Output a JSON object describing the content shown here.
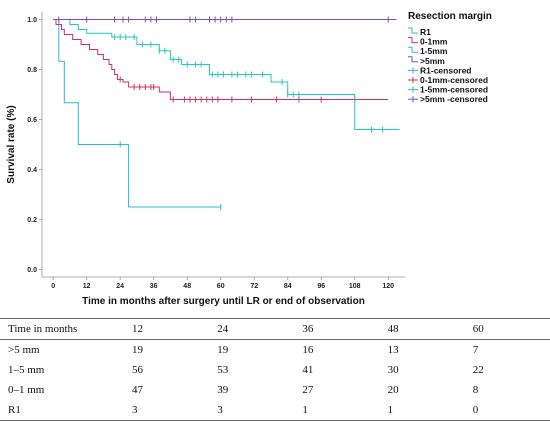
{
  "chart_data": {
    "type": "line",
    "subtype": "kaplan-meier",
    "title": "",
    "xlabel": "Time in months after surgery until LR or end of observation",
    "ylabel": "Survival rate (%)",
    "xlim": [
      -4,
      126
    ],
    "ylim": [
      -0.03,
      1.03
    ],
    "x_ticks": [
      0,
      12,
      24,
      36,
      48,
      60,
      72,
      84,
      96,
      108,
      120
    ],
    "x_tick_labels": [
      "0",
      "12",
      "24",
      "36",
      "48",
      "60",
      "72",
      "84",
      "96",
      "108",
      "120"
    ],
    "y_ticks": [
      0,
      0.2,
      0.4,
      0.6,
      0.8,
      1.0
    ],
    "y_tick_labels": [
      "0.0",
      "0.2",
      "0.4",
      "0.6",
      "0.8",
      "1.0"
    ],
    "grid": false,
    "legend_title": "Resection margin",
    "legend_position": "top-right",
    "series": [
      {
        "name": "R1",
        "censored_name": "R1-censored",
        "color": "#2fb8d0",
        "steps": [
          [
            0,
            1.0
          ],
          [
            2,
            0.833
          ],
          [
            4,
            0.667
          ],
          [
            9,
            0.5
          ],
          [
            27,
            0.25
          ]
        ],
        "end_x": 60,
        "censored_x": [
          24,
          60
        ]
      },
      {
        "name": "0-1mm",
        "censored_name": "0-1mm-censored",
        "color": "#d2325f",
        "steps": [
          [
            0,
            1.0
          ],
          [
            1,
            0.98
          ],
          [
            3,
            0.96
          ],
          [
            4,
            0.94
          ],
          [
            7,
            0.92
          ],
          [
            10,
            0.9
          ],
          [
            13,
            0.88
          ],
          [
            16,
            0.86
          ],
          [
            18,
            0.84
          ],
          [
            20,
            0.82
          ],
          [
            21,
            0.8
          ],
          [
            22,
            0.78
          ],
          [
            23,
            0.76
          ],
          [
            25,
            0.75
          ],
          [
            27,
            0.73
          ],
          [
            38,
            0.71
          ],
          [
            42,
            0.68
          ]
        ],
        "end_x": 120,
        "censored_x": [
          24,
          29,
          31,
          33,
          35,
          36,
          43,
          47,
          49,
          51,
          53,
          55,
          57,
          59,
          64,
          71,
          80,
          88,
          96,
          108
        ]
      },
      {
        "name": "1-5mm",
        "censored_name": "1-5mm-censored",
        "color": "#23c9c3",
        "steps": [
          [
            0,
            1.0
          ],
          [
            6,
            0.98
          ],
          [
            9,
            0.96
          ],
          [
            12,
            0.945
          ],
          [
            21,
            0.93
          ],
          [
            30,
            0.9
          ],
          [
            38,
            0.875
          ],
          [
            42,
            0.84
          ],
          [
            46,
            0.82
          ],
          [
            56,
            0.78
          ],
          [
            78,
            0.75
          ],
          [
            84,
            0.7
          ],
          [
            108,
            0.56
          ]
        ],
        "end_x": 124,
        "censored_x": [
          22,
          24,
          26,
          29,
          32,
          35,
          38,
          40,
          43,
          45,
          48,
          51,
          53,
          57,
          59,
          61,
          64,
          66,
          69,
          71,
          75,
          82,
          84,
          86,
          88,
          114,
          118
        ]
      },
      {
        "name": ">5mm",
        "censored_name": ">5mm -censored",
        "color": "#7a4fb5",
        "steps": [
          [
            0,
            1.0
          ]
        ],
        "end_x": 123,
        "censored_x": [
          2,
          12,
          22,
          25,
          27,
          33,
          35,
          37,
          49,
          51,
          56,
          58,
          60,
          62,
          64,
          120
        ]
      }
    ]
  },
  "risk_table": {
    "header_label": "Time in months",
    "time_points": [
      "12",
      "24",
      "36",
      "48",
      "60"
    ],
    "rows": [
      {
        "label": ">5 mm",
        "values": [
          "19",
          "19",
          "16",
          "13",
          "7"
        ]
      },
      {
        "label": "1–5 mm",
        "values": [
          "56",
          "53",
          "41",
          "30",
          "22"
        ]
      },
      {
        "label": "0–1 mm",
        "values": [
          "47",
          "39",
          "27",
          "20",
          "8"
        ]
      },
      {
        "label": "R1",
        "values": [
          "3",
          "3",
          "1",
          "1",
          "0"
        ]
      }
    ]
  }
}
